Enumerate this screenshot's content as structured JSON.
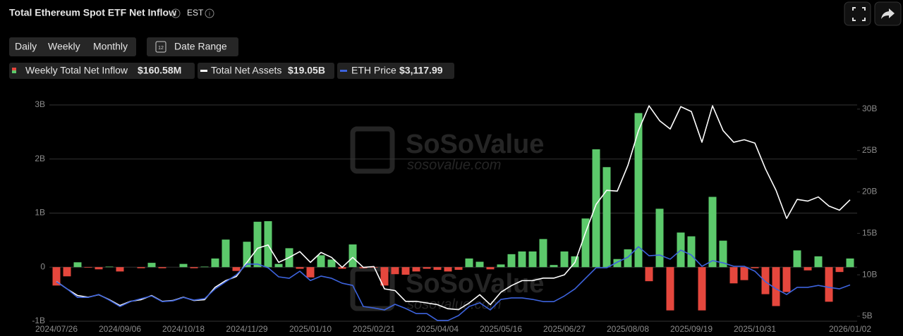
{
  "header": {
    "title": "Total Ethereum Spot ETF Net Inflow",
    "timezone": "EST"
  },
  "controls": {
    "periods": [
      "Daily",
      "Weekly",
      "Monthly"
    ],
    "active_period": "Weekly",
    "calendar_icon": "12",
    "date_range": "Date Range"
  },
  "watermark": {
    "brand": "SoSoValue",
    "site": "sosovalue.com"
  },
  "chart_data": {
    "type": "combo",
    "categories": [
      "2024/07/26",
      null,
      null,
      null,
      null,
      null,
      "2024/09/06",
      null,
      null,
      null,
      null,
      null,
      "2024/10/18",
      null,
      null,
      null,
      null,
      null,
      "2024/11/29",
      null,
      null,
      null,
      null,
      null,
      "2025/01/10",
      null,
      null,
      null,
      null,
      null,
      "2025/02/21",
      null,
      null,
      null,
      null,
      null,
      "2025/04/04",
      null,
      null,
      null,
      null,
      null,
      "2025/05/16",
      null,
      null,
      null,
      null,
      null,
      "2025/06/27",
      null,
      null,
      null,
      null,
      null,
      "2025/08/08",
      null,
      null,
      null,
      null,
      null,
      "2025/09/19",
      null,
      null,
      null,
      null,
      null,
      "2025/10/31",
      null,
      null,
      null,
      null,
      null,
      null,
      null,
      null,
      "2026/01/02"
    ],
    "ylim": [
      -1,
      3
    ],
    "yticks": [
      {
        "value": -1,
        "label": "-1B"
      },
      0,
      {
        "value": 1,
        "label": "1B"
      },
      {
        "value": 2,
        "label": "2B"
      },
      {
        "value": 3,
        "label": "3B"
      }
    ],
    "y2lim": [
      4.4,
      30.5
    ],
    "y2ticks": [
      {
        "value": 5,
        "label": "5B"
      },
      {
        "value": 10,
        "label": "10B"
      },
      {
        "value": 15,
        "label": "15B"
      },
      {
        "value": 20,
        "label": "20B"
      },
      {
        "value": 25,
        "label": "25B"
      },
      {
        "value": 30,
        "label": "30B"
      }
    ],
    "y3lim": [
      1640,
      10460
    ],
    "grid": true,
    "series": [
      {
        "name": "Weekly Total Net Inflow",
        "type": "bar",
        "color": "#5cc96b",
        "negative_color": "#e5473d",
        "latest_label": "$160.58M",
        "values": [
          -0.34,
          -0.17,
          0.09,
          -0.01,
          -0.04,
          0.01,
          -0.08,
          0,
          -0.02,
          0.08,
          -0.02,
          0,
          0.06,
          -0.02,
          0.01,
          0.16,
          0.51,
          -0.07,
          0.47,
          0.84,
          0.85,
          0.06,
          0.35,
          -0.03,
          -0.19,
          0.22,
          0.14,
          -0.03,
          0.42,
          -0.02,
          -0.01,
          -0.34,
          -0.13,
          -0.14,
          -0.08,
          -0.03,
          -0.05,
          -0.08,
          -0.05,
          0.16,
          0.1,
          -0.04,
          0.05,
          0.24,
          0.29,
          0.29,
          0.52,
          0.04,
          0.29,
          0.2,
          0.9,
          2.18,
          1.85,
          0.15,
          0.33,
          2.85,
          -0.26,
          1.08,
          -0.8,
          0.64,
          0.57,
          -0.8,
          1.3,
          0.49,
          -0.3,
          -0.24,
          -0.02,
          -0.5,
          -0.72,
          -0.46,
          0.31,
          -0.06,
          0.2,
          -0.64,
          -0.09,
          0.16
        ]
      },
      {
        "name": "Total Net Assets",
        "type": "line",
        "axis": "y2",
        "color": "#ffffff",
        "latest_label": "$19.05B",
        "values": [
          9.2,
          8.3,
          7.5,
          7.3,
          7.6,
          7.0,
          6.3,
          6.8,
          7.0,
          7.5,
          6.8,
          6.9,
          7.3,
          6.9,
          7.0,
          8.5,
          9.3,
          9.8,
          11.5,
          13.2,
          13.6,
          11.5,
          12.1,
          12.8,
          11.5,
          12.7,
          12.1,
          10.9,
          12.1,
          10.9,
          11.0,
          8.3,
          8.1,
          6.8,
          6.8,
          6.6,
          6.4,
          5.9,
          5.8,
          6.6,
          7.6,
          6.4,
          7.9,
          8.7,
          9.3,
          9.3,
          9.6,
          9.6,
          10.0,
          11.5,
          15.1,
          18.5,
          20.2,
          20.1,
          23.2,
          27.4,
          30.4,
          28.6,
          27.6,
          30.3,
          29.7,
          26.0,
          30.4,
          27.4,
          26.0,
          26.3,
          25.9,
          22.8,
          20.2,
          16.8,
          19.1,
          18.9,
          19.4,
          18.3,
          17.8,
          19.05
        ]
      },
      {
        "name": "ETH Price",
        "type": "line",
        "axis": "y3",
        "color": "#3d63dd",
        "latest_label": "$3,117.99",
        "values": [
          3250,
          2960,
          2610,
          2610,
          2730,
          2500,
          2240,
          2440,
          2560,
          2670,
          2440,
          2470,
          2610,
          2500,
          2560,
          2960,
          3250,
          3530,
          3970,
          3970,
          3820,
          3450,
          3390,
          3680,
          3300,
          3480,
          3390,
          3190,
          3100,
          2240,
          2180,
          2100,
          2330,
          2160,
          1950,
          1950,
          1670,
          1670,
          1870,
          2240,
          2390,
          2100,
          2530,
          2590,
          2590,
          2530,
          2440,
          2440,
          2670,
          2960,
          3390,
          3820,
          3820,
          4050,
          4250,
          4680,
          4310,
          4340,
          4170,
          4540,
          4340,
          3880,
          4110,
          4020,
          3880,
          3880,
          3680,
          3250,
          2960,
          2730,
          3020,
          3020,
          3100,
          3020,
          2960,
          3117.99
        ]
      }
    ]
  }
}
